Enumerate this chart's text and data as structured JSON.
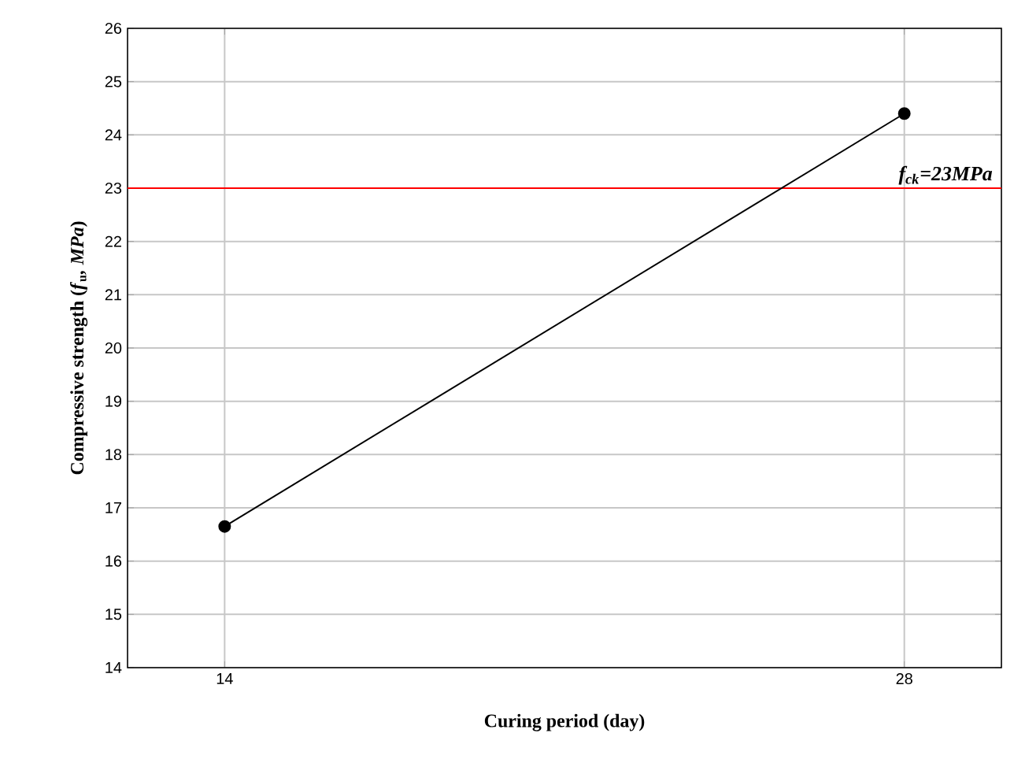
{
  "chart_data": {
    "type": "line",
    "xlabel": "Curing period (day)",
    "ylabel": "Compressive strength (*f*$_{u}$*, MPa*)",
    "x": [
      14,
      28
    ],
    "series": [
      {
        "color": "#000000",
        "values": [
          16.65,
          24.4
        ]
      }
    ],
    "xlim": [
      12,
      30
    ],
    "xticks": [
      14,
      28
    ],
    "ylim": [
      14,
      26
    ],
    "yticks": [
      14,
      15,
      16,
      17,
      18,
      19,
      20,
      21,
      22,
      23,
      24,
      25,
      26
    ],
    "ref_lines": [
      {
        "axis": "y",
        "value": 23,
        "label": "f$_{ck}$=23MPa",
        "color": "#ff0000"
      }
    ],
    "grid": true,
    "marker": "circle",
    "line_style": "solid"
  }
}
